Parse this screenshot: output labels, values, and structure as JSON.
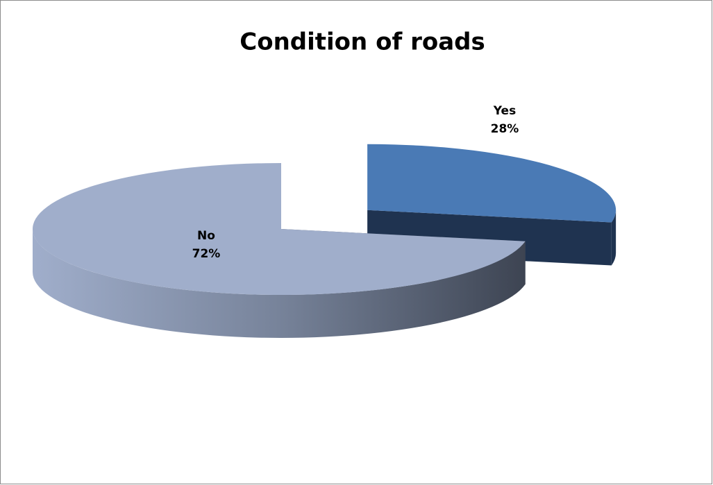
{
  "chart_data": {
    "type": "pie",
    "title": "Condition of roads",
    "categories": [
      "Yes",
      "No"
    ],
    "values": [
      28,
      72
    ],
    "value_labels": [
      "28%",
      "72%"
    ],
    "colors": [
      "#4a7ab5",
      "#a0aecb"
    ]
  }
}
